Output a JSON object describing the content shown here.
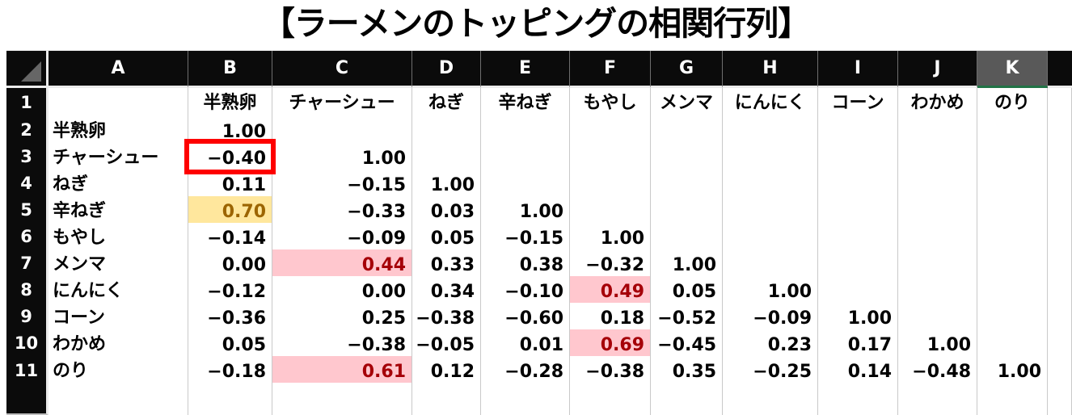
{
  "title": "【ラーメンのトッピングの相関行列】",
  "sheet": {
    "column_letters": [
      "A",
      "B",
      "C",
      "D",
      "E",
      "F",
      "G",
      "H",
      "I",
      "J",
      "K"
    ],
    "selected_column": "K",
    "row1_num": "1",
    "topping_columns": [
      "半熟卵",
      "チャーシュー",
      "ねぎ",
      "辛ねぎ",
      "もやし",
      "メンマ",
      "にんにく",
      "コーン",
      "わかめ",
      "のり"
    ],
    "rows": [
      {
        "num": "2",
        "label": "半熟卵",
        "values": [
          "1.00",
          "",
          "",
          "",
          "",
          "",
          "",
          "",
          "",
          ""
        ]
      },
      {
        "num": "3",
        "label": "チャーシュー",
        "values": [
          "−0.40",
          "1.00",
          "",
          "",
          "",
          "",
          "",
          "",
          "",
          ""
        ]
      },
      {
        "num": "4",
        "label": "ねぎ",
        "values": [
          "0.11",
          "−0.15",
          "1.00",
          "",
          "",
          "",
          "",
          "",
          "",
          ""
        ]
      },
      {
        "num": "5",
        "label": "辛ねぎ",
        "values": [
          "0.70",
          "−0.33",
          "0.03",
          "1.00",
          "",
          "",
          "",
          "",
          "",
          ""
        ]
      },
      {
        "num": "6",
        "label": "もやし",
        "values": [
          "−0.14",
          "−0.09",
          "0.05",
          "−0.15",
          "1.00",
          "",
          "",
          "",
          "",
          ""
        ]
      },
      {
        "num": "7",
        "label": "メンマ",
        "values": [
          "0.00",
          "0.44",
          "0.33",
          "0.38",
          "−0.32",
          "1.00",
          "",
          "",
          "",
          ""
        ]
      },
      {
        "num": "8",
        "label": "にんにく",
        "values": [
          "−0.12",
          "0.00",
          "0.34",
          "−0.10",
          "0.49",
          "0.05",
          "1.00",
          "",
          "",
          ""
        ]
      },
      {
        "num": "9",
        "label": "コーン",
        "values": [
          "−0.36",
          "0.25",
          "−0.38",
          "−0.60",
          "0.18",
          "−0.52",
          "−0.09",
          "1.00",
          "",
          ""
        ]
      },
      {
        "num": "10",
        "label": "わかめ",
        "values": [
          "0.05",
          "−0.38",
          "−0.05",
          "0.01",
          "0.69",
          "−0.45",
          "0.23",
          "0.17",
          "1.00",
          ""
        ]
      },
      {
        "num": "11",
        "label": "のり",
        "values": [
          "−0.18",
          "0.61",
          "0.12",
          "−0.28",
          "−0.38",
          "0.35",
          "−0.25",
          "0.14",
          "−0.48",
          "1.00"
        ]
      }
    ],
    "highlights": {
      "red_box_cell": "B3",
      "yellow_cells": [
        "B5"
      ],
      "pink_cells": [
        "C7",
        "F8",
        "F10",
        "C11"
      ]
    }
  },
  "colors": {
    "header_bg": "#0b0b0b",
    "header_text": "#ffffff",
    "selected_header_bg": "#595959",
    "selection_green": "#217346",
    "gridline": "#c9c9c9",
    "yellow_bg": "#ffe79d",
    "yellow_text": "#9c6500",
    "pink_bg": "#ffc7ce",
    "pink_text": "#a50008",
    "red_box": "#fe0000",
    "thick_border": "#000000"
  }
}
